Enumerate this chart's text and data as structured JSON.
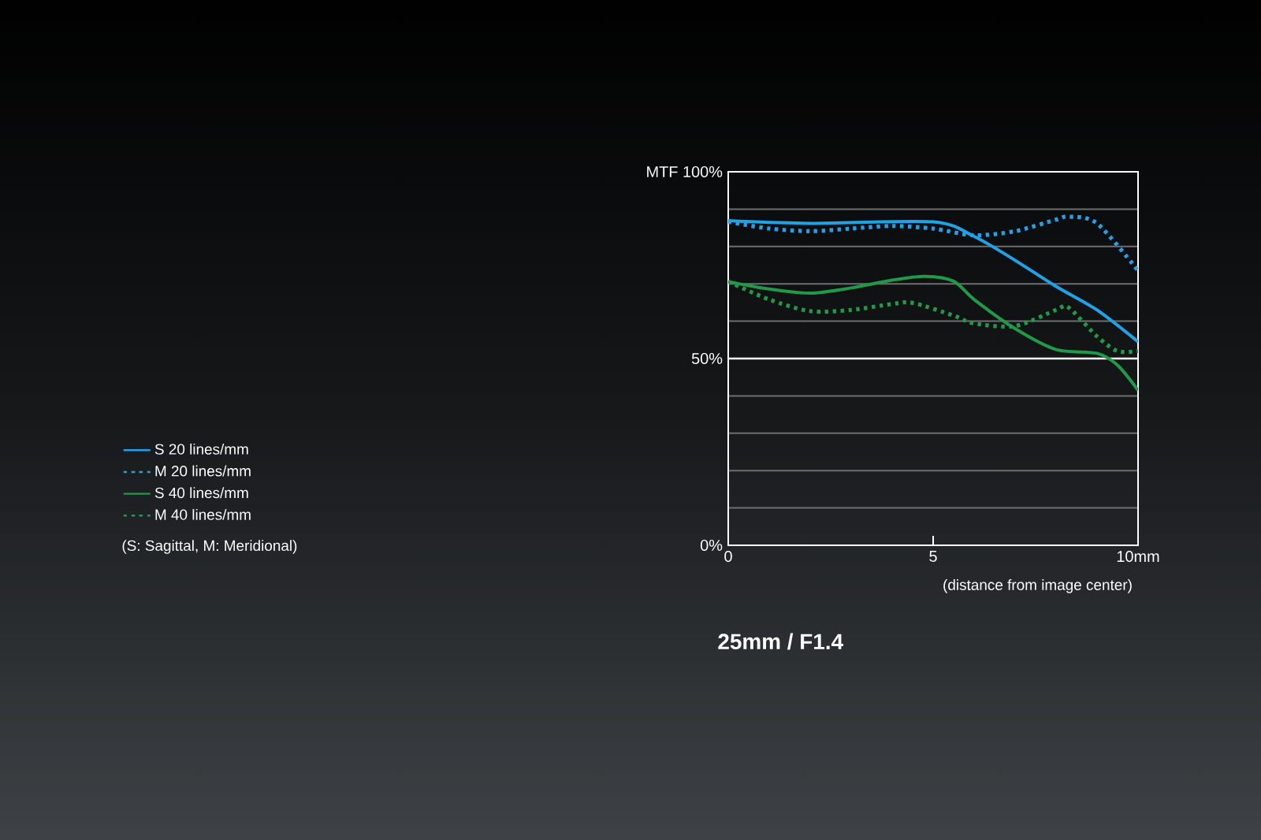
{
  "chart_data": {
    "type": "line",
    "title": "25mm / F1.4",
    "xlabel": "(distance from image center)",
    "xlim": [
      0,
      10
    ],
    "ylim": [
      0,
      100
    ],
    "xticks": [
      0,
      5,
      {
        "value": 10,
        "label": "10mm"
      }
    ],
    "yticks": [
      {
        "value": 0,
        "label": "0%"
      },
      {
        "value": 10,
        "label": null
      },
      {
        "value": 20,
        "label": null
      },
      {
        "value": 30,
        "label": null
      },
      {
        "value": 40,
        "label": null
      },
      {
        "value": 50,
        "label": "50%"
      },
      {
        "value": 60,
        "label": null
      },
      {
        "value": 70,
        "label": null
      },
      {
        "value": 80,
        "label": null
      },
      {
        "value": 90,
        "label": null
      },
      {
        "value": 100,
        "label": "MTF 100%"
      }
    ],
    "grid": "y",
    "legend": "left",
    "tick_labels": "xy",
    "ref_lines": [
      {
        "axis": "y",
        "value": 50,
        "label": null,
        "color": "#ffffff"
      }
    ],
    "annotations": [
      "(S: Sagittal, M: Meridional)"
    ],
    "series": [
      {
        "name": "S  20 lines/mm",
        "color": "#1ea3ea",
        "line_style": "solid",
        "x": [
          0,
          2,
          5,
          6,
          7,
          8,
          9,
          10
        ],
        "values": [
          86.9,
          86.2,
          86.6,
          82.7,
          76.3,
          69.3,
          63,
          54.5
        ]
      },
      {
        "name": "M 20 lines/mm",
        "color": "#1ea3ea",
        "line_style": "dotted",
        "x": [
          0,
          1,
          2,
          3,
          4,
          5,
          6,
          7,
          8,
          8.3,
          9,
          10
        ],
        "values": [
          86.6,
          84.8,
          84.1,
          84.8,
          85.5,
          84.8,
          83,
          84.1,
          87.2,
          88,
          86.2,
          73.5
        ]
      },
      {
        "name": "S  40 lines/mm",
        "color": "#1f9a48",
        "line_style": "solid",
        "x": [
          0,
          1,
          2,
          3,
          4,
          4.8,
          5.5,
          6,
          7,
          8,
          9,
          9.5,
          10
        ],
        "values": [
          70.6,
          68.6,
          67.5,
          68.9,
          71,
          72,
          70.7,
          65.8,
          58,
          52.4,
          51.4,
          48.2,
          41.5
        ]
      },
      {
        "name": "M 40 lines/mm",
        "color": "#1f9a48",
        "line_style": "dotted",
        "x": [
          0,
          1,
          2,
          3,
          4,
          4.5,
          5.5,
          6,
          7,
          8,
          8.3,
          9,
          9.5,
          10
        ],
        "values": [
          70.6,
          65.8,
          62.7,
          63,
          64.6,
          64.9,
          61.5,
          59.4,
          58.7,
          63,
          63.7,
          55.9,
          52,
          52
        ]
      }
    ]
  }
}
